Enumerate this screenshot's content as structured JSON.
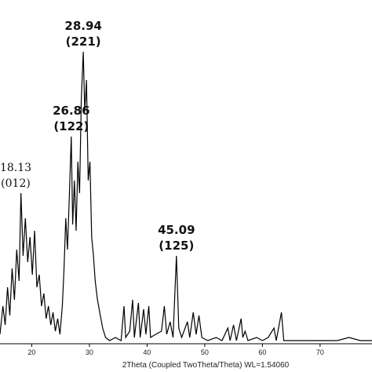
{
  "chart_data": {
    "type": "line",
    "title": "",
    "xlabel": "2Theta (Coupled TwoTheta/Theta) WL=1.54060",
    "ylabel": "",
    "xlim": [
      14.5,
      79
    ],
    "ylim": [
      0,
      100
    ],
    "grid": false,
    "legend": "none",
    "line_color": "#000000",
    "x_ticks": [
      20,
      30,
      40,
      50,
      60,
      70
    ],
    "x_tick_labels": [
      "20",
      "30",
      "40",
      "50",
      "60",
      "70"
    ],
    "peaks": [
      {
        "x": 18.13,
        "y": 48,
        "label": "18.13",
        "hkl": "(012)"
      },
      {
        "x": 26.86,
        "y": 66,
        "label": "26.86",
        "hkl": "(122)"
      },
      {
        "x": 28.94,
        "y": 93,
        "label": "28.94",
        "hkl": "(221)"
      },
      {
        "x": 45.09,
        "y": 28,
        "label": "45.09",
        "hkl": "(125)"
      }
    ],
    "points": [
      [
        14.5,
        3
      ],
      [
        15.0,
        12
      ],
      [
        15.4,
        6
      ],
      [
        15.8,
        18
      ],
      [
        16.2,
        9
      ],
      [
        16.6,
        24
      ],
      [
        17.0,
        14
      ],
      [
        17.4,
        30
      ],
      [
        17.8,
        20
      ],
      [
        18.13,
        48
      ],
      [
        18.5,
        28
      ],
      [
        18.9,
        40
      ],
      [
        19.3,
        26
      ],
      [
        19.7,
        34
      ],
      [
        20.1,
        22
      ],
      [
        20.5,
        36
      ],
      [
        20.9,
        18
      ],
      [
        21.3,
        22
      ],
      [
        21.7,
        12
      ],
      [
        22.1,
        16
      ],
      [
        22.5,
        8
      ],
      [
        22.9,
        12
      ],
      [
        23.3,
        6
      ],
      [
        23.7,
        10
      ],
      [
        24.1,
        4
      ],
      [
        24.5,
        8
      ],
      [
        24.9,
        3
      ],
      [
        25.3,
        12
      ],
      [
        25.6,
        24
      ],
      [
        25.9,
        40
      ],
      [
        26.2,
        30
      ],
      [
        26.5,
        46
      ],
      [
        26.86,
        66
      ],
      [
        27.1,
        38
      ],
      [
        27.4,
        52
      ],
      [
        27.7,
        36
      ],
      [
        28.0,
        58
      ],
      [
        28.3,
        48
      ],
      [
        28.6,
        78
      ],
      [
        28.94,
        93
      ],
      [
        29.2,
        74
      ],
      [
        29.5,
        84
      ],
      [
        29.8,
        52
      ],
      [
        30.1,
        58
      ],
      [
        30.4,
        34
      ],
      [
        30.7,
        28
      ],
      [
        31.0,
        20
      ],
      [
        31.4,
        14
      ],
      [
        31.8,
        10
      ],
      [
        32.3,
        5
      ],
      [
        32.8,
        2
      ],
      [
        33.5,
        1
      ],
      [
        34.5,
        2
      ],
      [
        35.5,
        1
      ],
      [
        36.0,
        12
      ],
      [
        36.3,
        2
      ],
      [
        37.0,
        4
      ],
      [
        37.5,
        14
      ],
      [
        37.8,
        2
      ],
      [
        38.5,
        13
      ],
      [
        38.8,
        2
      ],
      [
        39.4,
        11
      ],
      [
        39.8,
        3
      ],
      [
        40.3,
        12
      ],
      [
        40.6,
        2
      ],
      [
        41.5,
        3
      ],
      [
        42.5,
        4
      ],
      [
        43.0,
        12
      ],
      [
        43.4,
        3
      ],
      [
        44.0,
        7
      ],
      [
        44.5,
        2
      ],
      [
        45.09,
        28
      ],
      [
        45.5,
        5
      ],
      [
        46.0,
        2
      ],
      [
        47.0,
        7
      ],
      [
        47.4,
        2
      ],
      [
        48.0,
        10
      ],
      [
        48.5,
        3
      ],
      [
        49.0,
        9
      ],
      [
        49.5,
        2
      ],
      [
        50.5,
        1
      ],
      [
        52.0,
        2
      ],
      [
        53.0,
        1
      ],
      [
        54.0,
        5
      ],
      [
        54.4,
        1
      ],
      [
        55.0,
        6
      ],
      [
        55.5,
        1
      ],
      [
        56.3,
        8
      ],
      [
        56.6,
        2
      ],
      [
        57.0,
        4
      ],
      [
        57.5,
        1
      ],
      [
        59.0,
        2
      ],
      [
        60.0,
        1
      ],
      [
        61.0,
        2
      ],
      [
        62.0,
        5
      ],
      [
        62.4,
        1
      ],
      [
        63.3,
        10
      ],
      [
        63.7,
        1
      ],
      [
        65.0,
        1
      ],
      [
        67.0,
        1
      ],
      [
        69.0,
        1
      ],
      [
        71.0,
        1
      ],
      [
        73.0,
        1
      ],
      [
        75.0,
        2
      ],
      [
        77.0,
        1
      ],
      [
        79.0,
        1
      ]
    ]
  }
}
